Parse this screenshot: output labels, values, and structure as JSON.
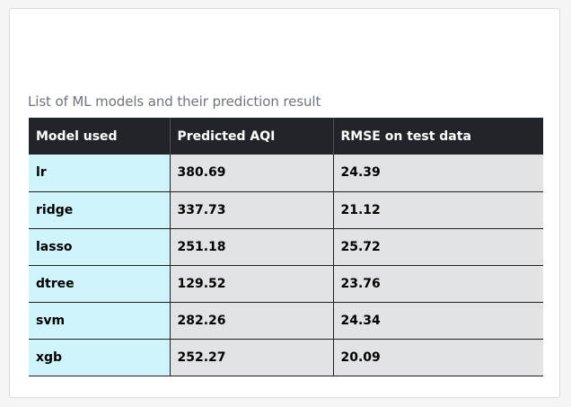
{
  "caption": "List of ML models and their prediction result",
  "table": {
    "headers": [
      "Model used",
      "Predicted AQI",
      "RMSE on test data"
    ],
    "rows": [
      [
        "lr",
        "380.69",
        "24.39"
      ],
      [
        "ridge",
        "337.73",
        "21.12"
      ],
      [
        "lasso",
        "251.18",
        "25.72"
      ],
      [
        "dtree",
        "129.52",
        "23.76"
      ],
      [
        "svm",
        "282.26",
        "24.34"
      ],
      [
        "xgb",
        "252.27",
        "20.09"
      ]
    ]
  },
  "colors": {
    "header_bg": "#212529",
    "model_cell_bg": "#cff4fc",
    "value_cell_bg": "#e2e3e5",
    "caption_text": "#6c757d"
  }
}
